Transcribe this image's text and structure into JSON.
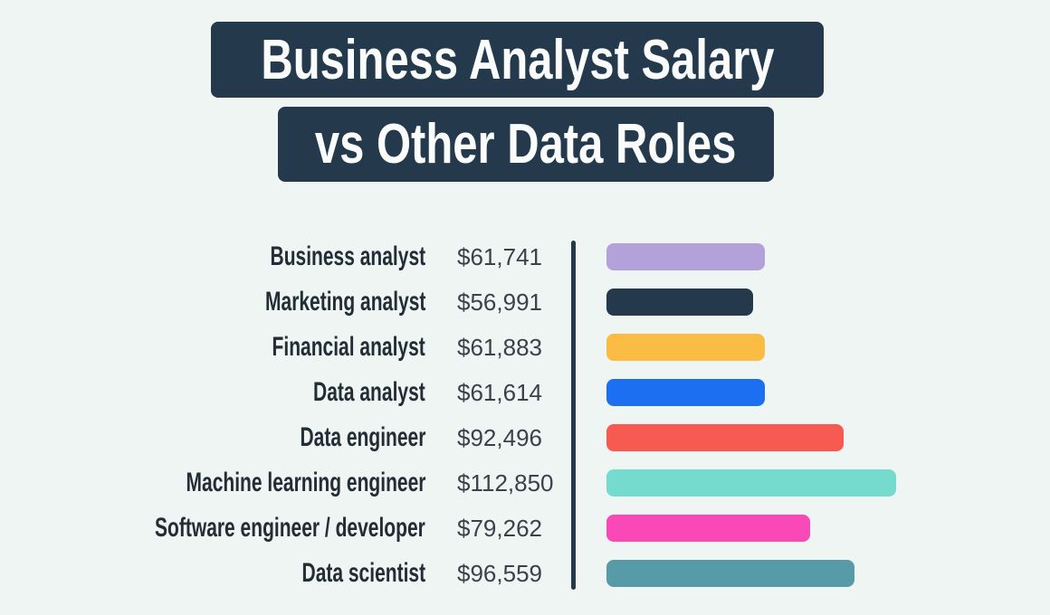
{
  "header": {
    "title_line1": "Business Analyst Salary",
    "title_line2": "vs Other Data Roles"
  },
  "colors": {
    "background": "#eef5f3",
    "title_box": "#24394b",
    "title_text": "#fafcfc",
    "axis_line": "#24394b",
    "label_text": "#232d36",
    "value_text": "#39424b"
  },
  "chart_data": {
    "type": "bar",
    "orientation": "horizontal",
    "title": "Business Analyst Salary vs Other Data Roles",
    "xlabel": "",
    "ylabel": "",
    "xlim": [
      0,
      112850
    ],
    "grid": false,
    "legend": false,
    "rows": [
      {
        "label": "Business analyst",
        "value": 61741,
        "value_label": "$61,741",
        "color": "#b3a2da"
      },
      {
        "label": "Marketing analyst",
        "value": 56991,
        "value_label": "$56,991",
        "color": "#243a4c"
      },
      {
        "label": "Financial analyst",
        "value": 61883,
        "value_label": "$61,883",
        "color": "#fabc42"
      },
      {
        "label": "Data analyst",
        "value": 61614,
        "value_label": "$61,614",
        "color": "#1d6ff2"
      },
      {
        "label": "Data engineer",
        "value": 92496,
        "value_label": "$92,496",
        "color": "#f65a50"
      },
      {
        "label": "Machine learning engineer",
        "value": 112850,
        "value_label": "$112,850",
        "color": "#74dbce"
      },
      {
        "label": "Software engineer / developer",
        "value": 79262,
        "value_label": "$79,262",
        "color": "#fa48b6"
      },
      {
        "label": "Data scientist",
        "value": 96559,
        "value_label": "$96,559",
        "color": "#579aa8"
      }
    ]
  }
}
